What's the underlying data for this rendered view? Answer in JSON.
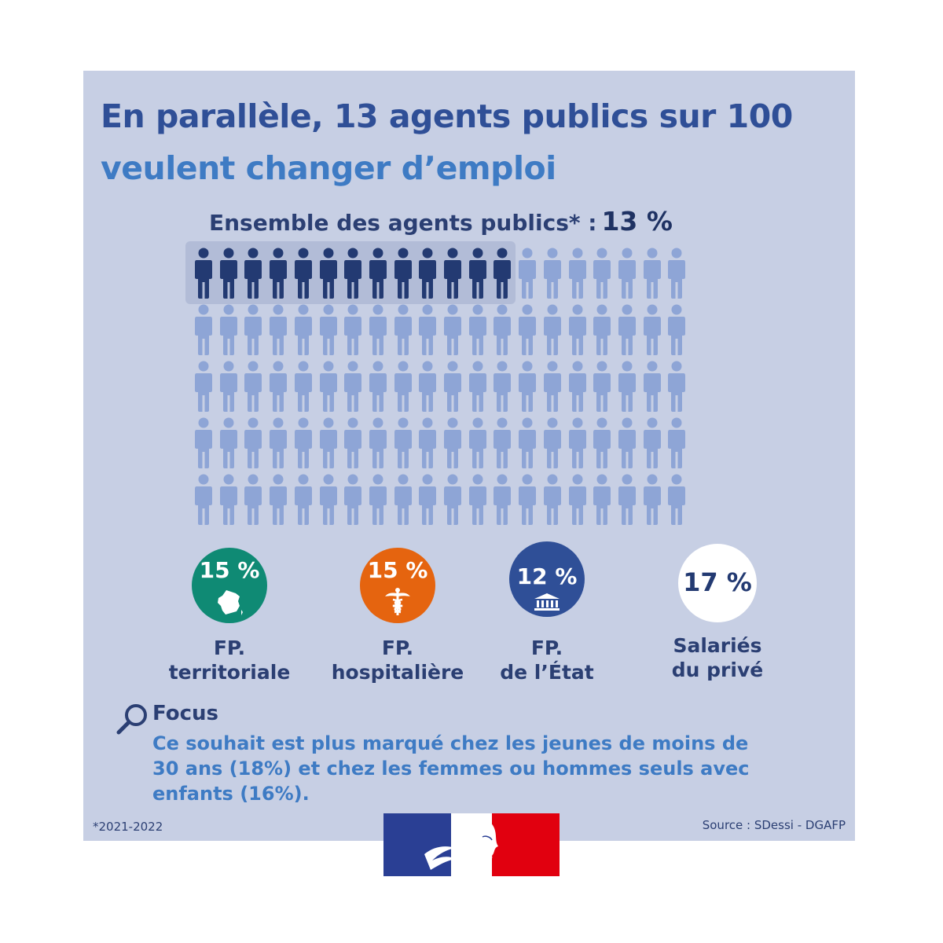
{
  "title": {
    "line1": "En parallèle, 13 agents publics sur 100",
    "line2": "veulent changer d’emploi"
  },
  "subtitle": {
    "label": "Ensemble des agents publics* :",
    "value": "13 %"
  },
  "pictogram": {
    "total": 100,
    "highlighted": 13,
    "highlight_color": "#233a72",
    "base_color": "#8ea5d6"
  },
  "categories": [
    {
      "value": "15 %",
      "line1": "FP.",
      "line2": "territoriale",
      "color": "#0f8a74",
      "icon": "france-map-icon"
    },
    {
      "value": "15 %",
      "line1": "FP.",
      "line2": "hospitalière",
      "color": "#e5640f",
      "icon": "caduceus-icon"
    },
    {
      "value": "12 %",
      "line1": "FP.",
      "line2": "de l’État",
      "color": "#2f4f97",
      "icon": "government-building-icon"
    },
    {
      "value": "17 %",
      "line1": "Salariés",
      "line2": "du privé",
      "color": "#ffffff",
      "icon": ""
    }
  ],
  "focus": {
    "title": "Focus",
    "text": "Ce souhait est plus marqué chez les jeunes de moins de 30 ans (18%) et chez les femmes ou hommes seuls avec enfants (16%)."
  },
  "footnote": "*2021-2022",
  "source": "Source : SDessi - DGAFP",
  "colors": {
    "panel": "#c7cfe4",
    "title_dark": "#2f4f97",
    "title_light": "#3e7bc4",
    "flag_blue": "#2a3f94",
    "flag_red": "#e1000f"
  }
}
